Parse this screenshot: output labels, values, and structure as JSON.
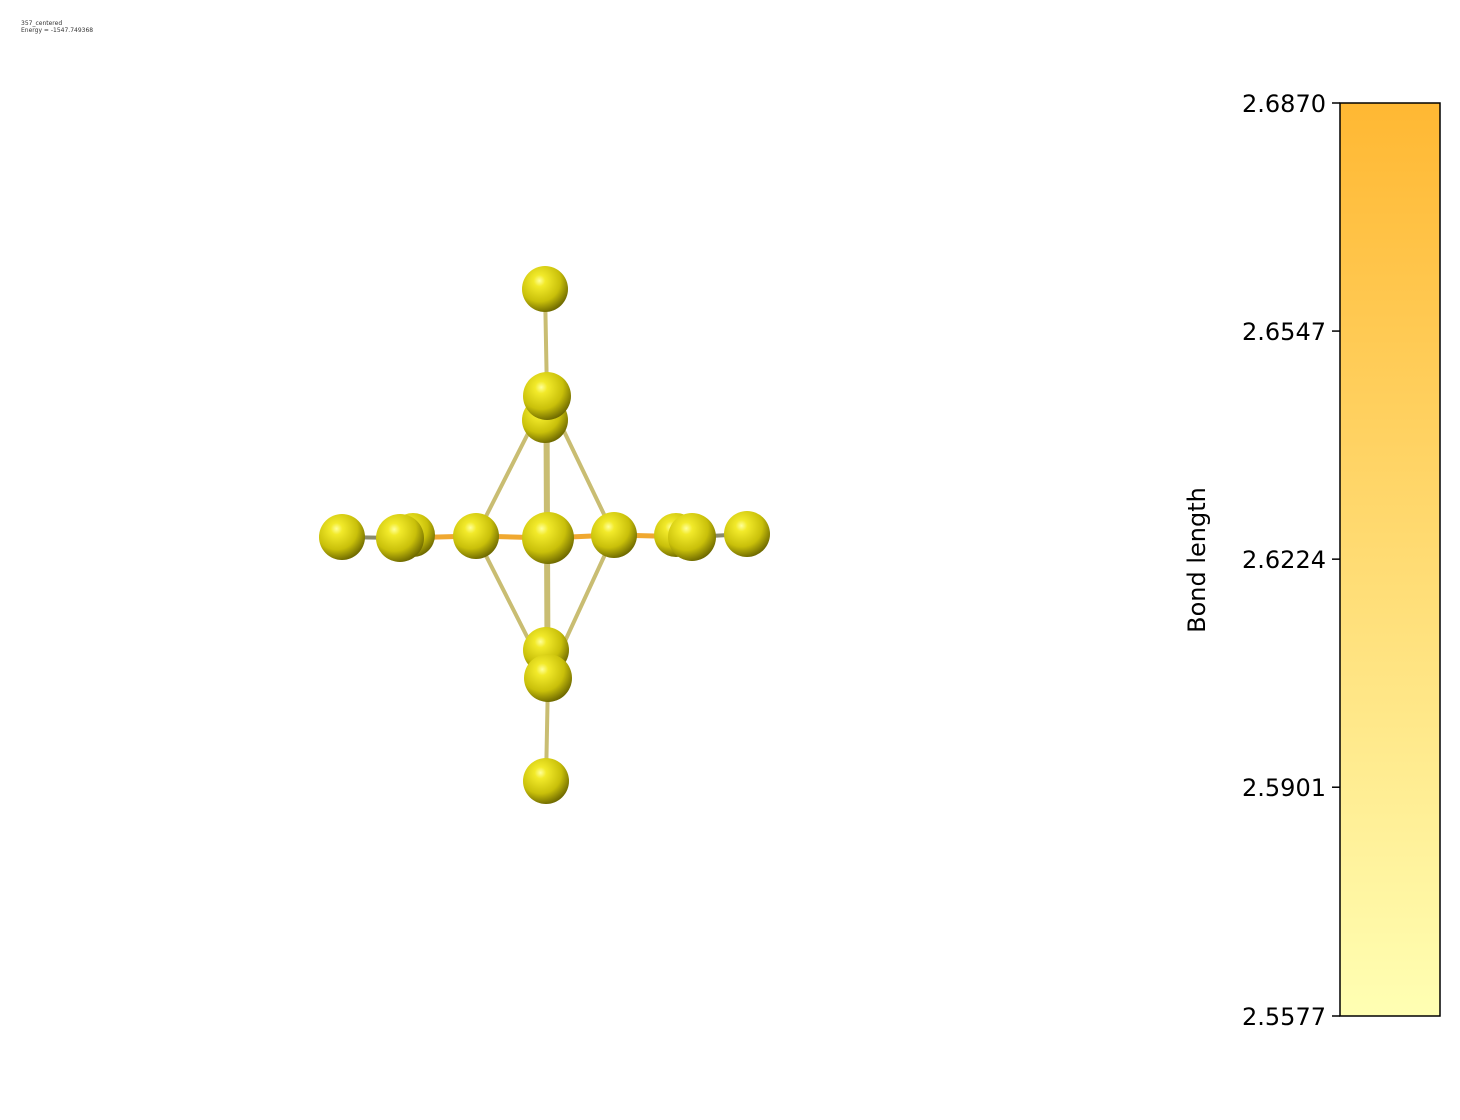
{
  "caption": {
    "name": "357_centered",
    "energy": "Energy = -1547.749368"
  },
  "colors": {
    "atom": "#d4cc10",
    "atom_highlight": "#ffff88",
    "atom_shadow": "#6f6a00",
    "bond_light": "#c9bd72",
    "bond_orange": "#f0a830",
    "bond_gray": "#8a8a6a",
    "colorbar_top": "#ffb833",
    "colorbar_bottom": "#ffffb3"
  },
  "colorbar": {
    "label": "Bond length",
    "min": 2.5577,
    "max": 2.687,
    "tick_labels": [
      "2.5577",
      "2.5901",
      "2.6224",
      "2.6547",
      "2.6870"
    ],
    "tick_values": [
      2.5577,
      2.5901,
      2.6224,
      2.6547,
      2.687
    ]
  }
}
